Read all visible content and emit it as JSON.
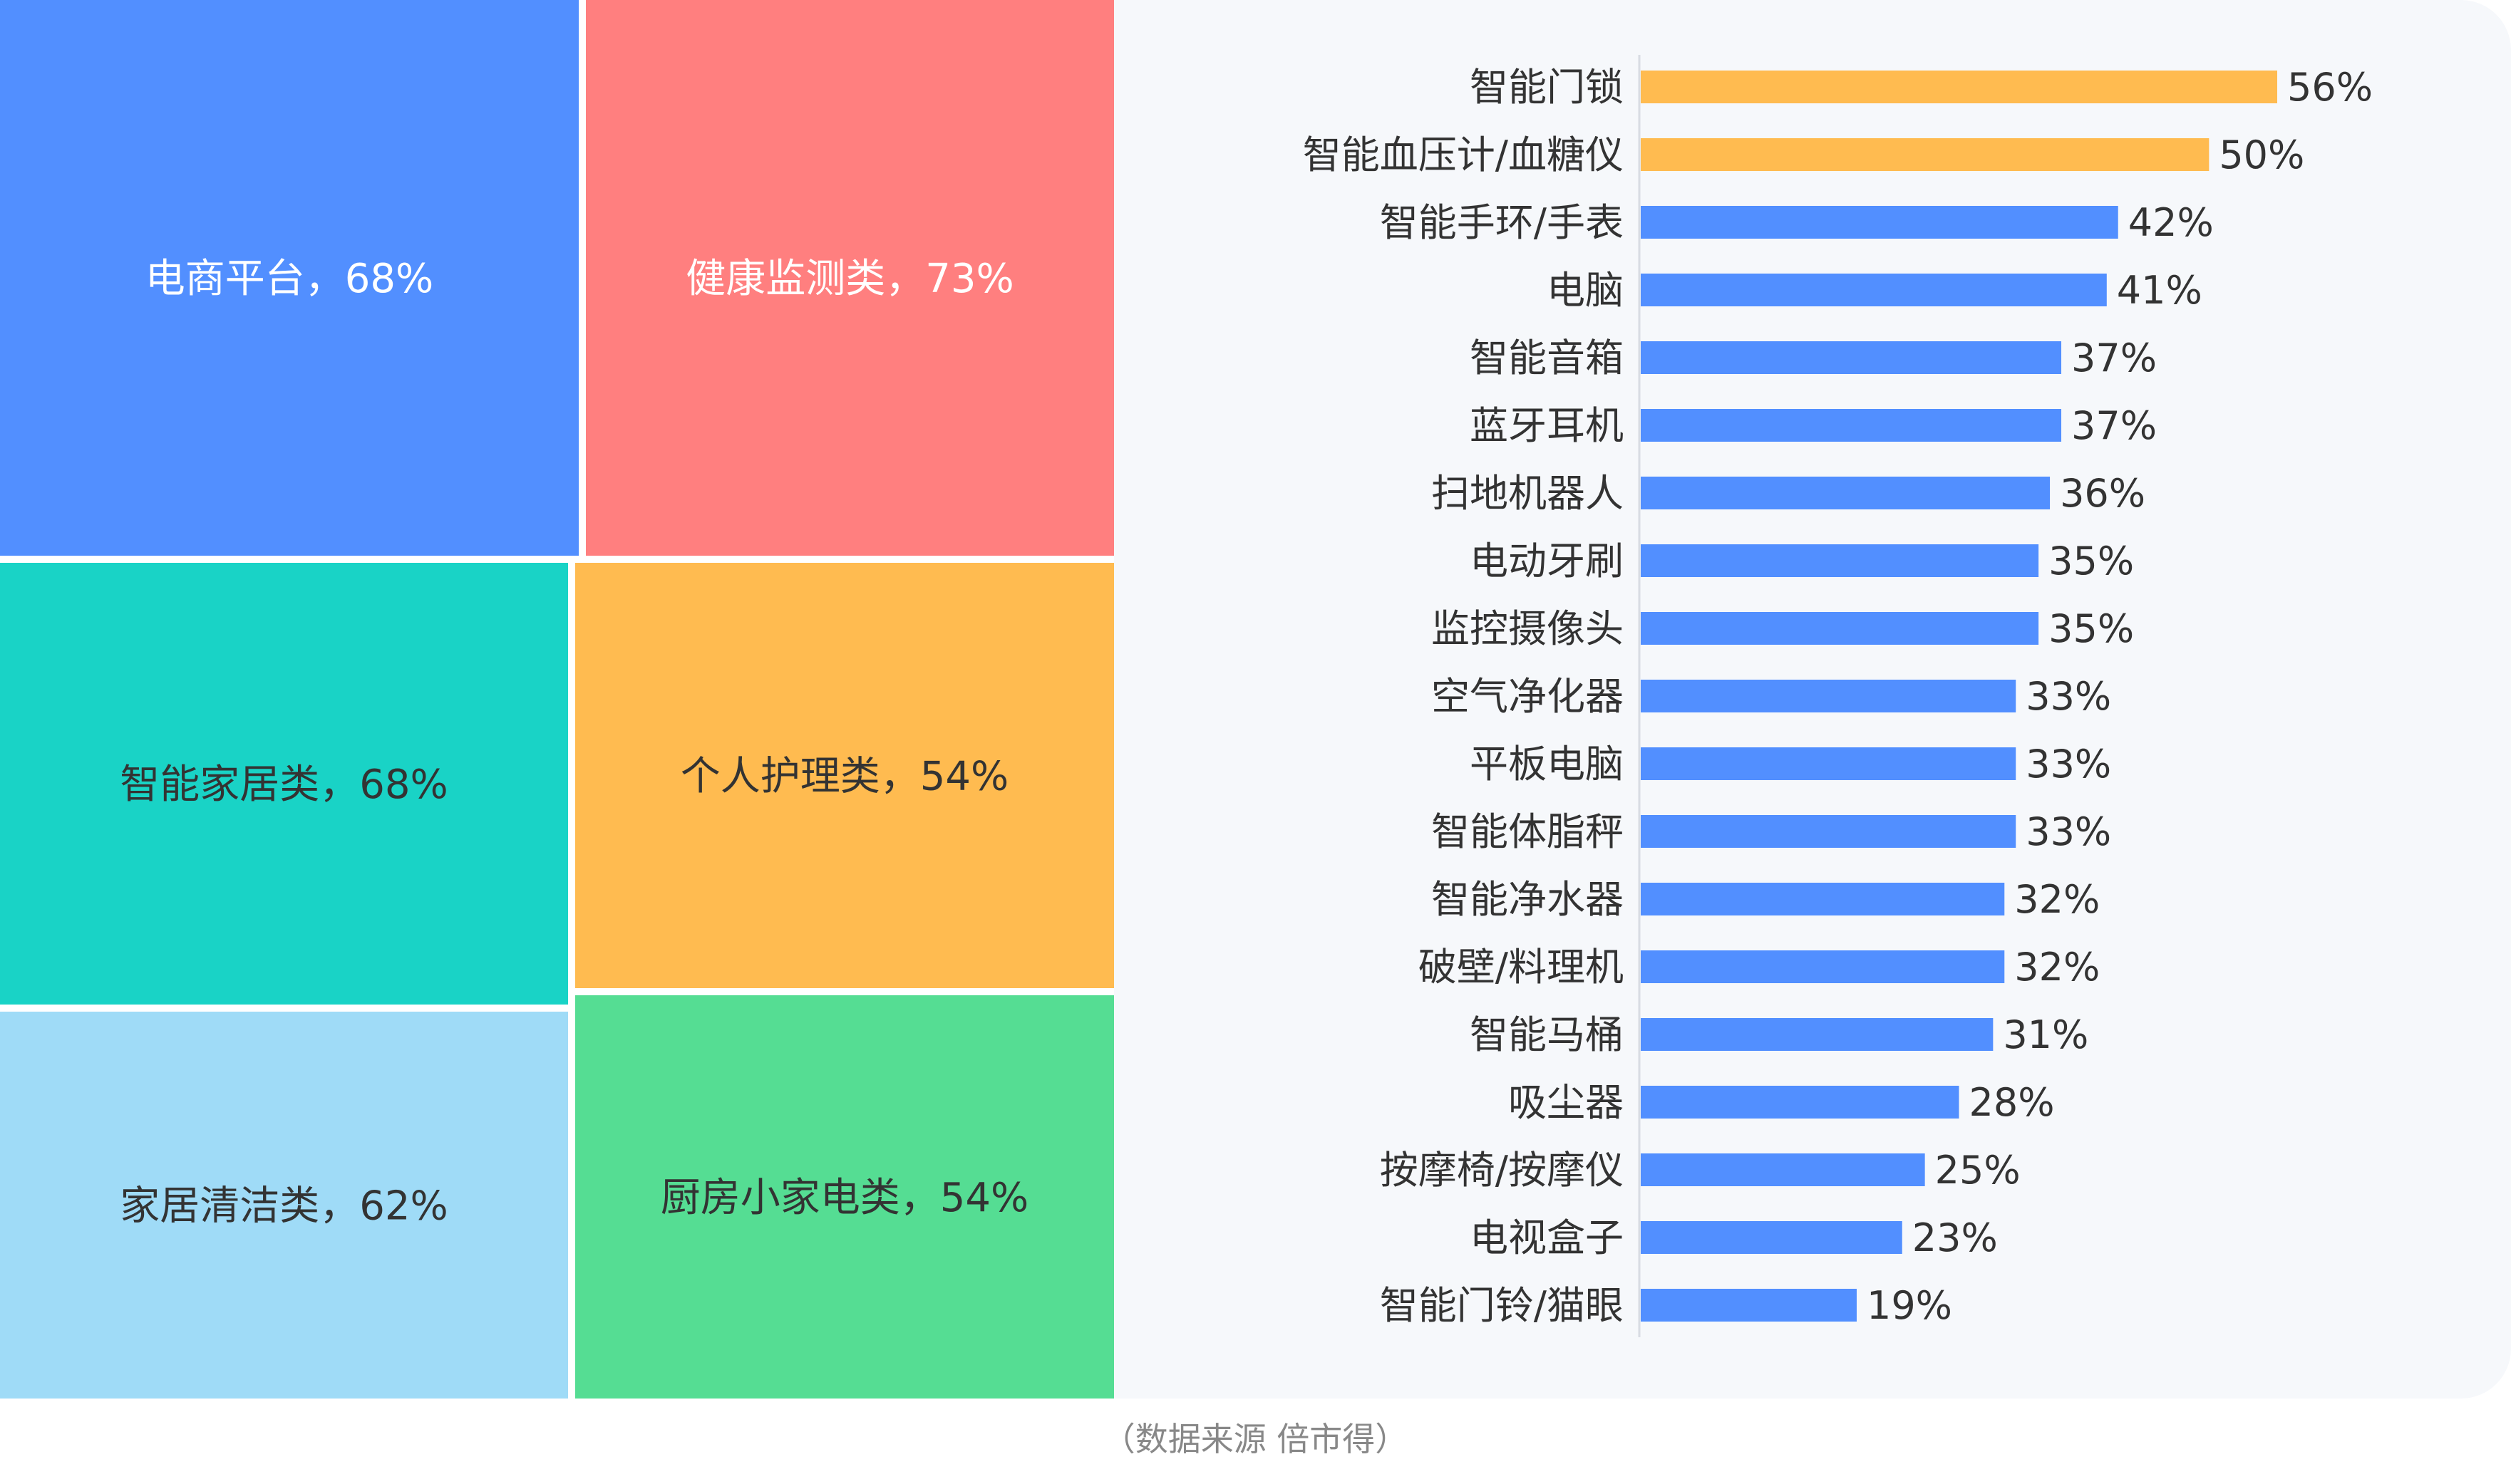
{
  "source_note": "（数据来源  倍市得）",
  "chart_data": [
    {
      "type": "treemap",
      "items": [
        {
          "label": "电商平台，68%",
          "name": "电商平台",
          "value": 68,
          "color": "#528FFF",
          "text_color": "#FFFFFF"
        },
        {
          "label": "健康监测类，73%",
          "name": "健康监测类",
          "value": 73,
          "color": "#FF7F7F",
          "text_color": "#FFFFFF"
        },
        {
          "label": "智能家居类，68%",
          "name": "智能家居类",
          "value": 68,
          "color": "#19D3C6",
          "text_color": "#333333"
        },
        {
          "label": "个人护理类，54%",
          "name": "个人护理类",
          "value": 54,
          "color": "#FFBB50",
          "text_color": "#333333"
        },
        {
          "label": "家居清洁类，62%",
          "name": "家居清洁类",
          "value": 62,
          "color": "#9FDBF7",
          "text_color": "#333333"
        },
        {
          "label": "厨房小家电类，54%",
          "name": "厨房小家电类",
          "value": 54,
          "color": "#55DD93",
          "text_color": "#333333"
        }
      ]
    },
    {
      "type": "bar",
      "orientation": "horizontal",
      "categories": [
        "智能门锁",
        "智能血压计/血糖仪",
        "智能手环/手表",
        "电脑",
        "智能音箱",
        "蓝牙耳机",
        "扫地机器人",
        "电动牙刷",
        "监控摄像头",
        "空气净化器",
        "平板电脑",
        "智能体脂秤",
        "智能净水器",
        "破壁/料理机",
        "智能马桶",
        "吸尘器",
        "按摩椅/按摩仪",
        "电视盒子",
        "智能门铃/猫眼"
      ],
      "values": [
        56,
        50,
        42,
        41,
        37,
        37,
        36,
        35,
        35,
        33,
        33,
        33,
        32,
        32,
        31,
        28,
        25,
        23,
        19
      ],
      "value_labels": [
        "56%",
        "50%",
        "42%",
        "41%",
        "37%",
        "37%",
        "36%",
        "35%",
        "35%",
        "33%",
        "33%",
        "33%",
        "32%",
        "32%",
        "31%",
        "28%",
        "25%",
        "23%",
        "19%"
      ],
      "highlight_count": 2,
      "colors": {
        "highlight": "#FFBB50",
        "normal": "#528FFF",
        "panel": "#F6F8FB",
        "axis": "#D8DCE3",
        "text": "#333333"
      },
      "xlim": [
        0,
        56
      ],
      "grid": false
    }
  ]
}
